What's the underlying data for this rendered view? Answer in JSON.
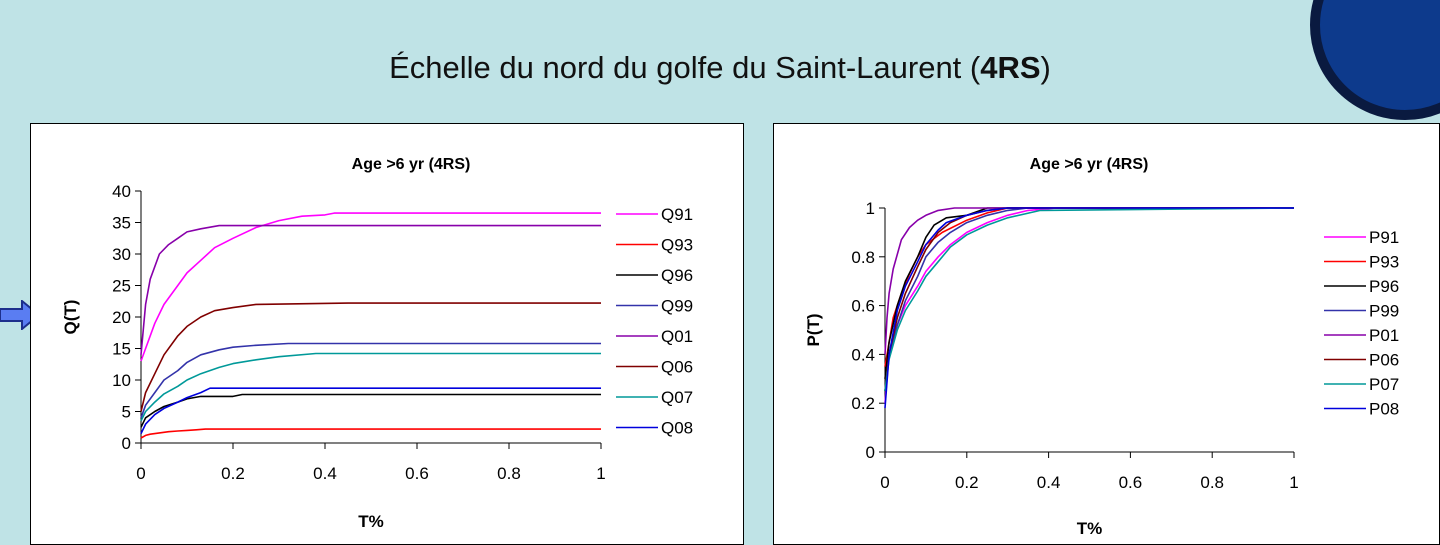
{
  "header": {
    "title_prefix": "Échelle du nord du golfe du Saint-Laurent (",
    "title_bold": "4RS",
    "title_suffix": ")"
  },
  "chart_data": [
    {
      "type": "line",
      "title": "Age >6 yr (4RS)",
      "xlabel": "T%",
      "ylabel": "Q(T)",
      "xlim": [
        0,
        1
      ],
      "ylim": [
        0,
        40
      ],
      "xticks": [
        "0",
        "0.2",
        "0.4",
        "0.6",
        "0.8",
        "1"
      ],
      "yticks": [
        "0",
        "5",
        "10",
        "15",
        "20",
        "25",
        "30",
        "35",
        "40"
      ],
      "legend_position": "right",
      "grid": false,
      "series": [
        {
          "name": "Q91",
          "color": "#ff00ff",
          "x": [
            0,
            0.01,
            0.03,
            0.05,
            0.08,
            0.1,
            0.13,
            0.16,
            0.2,
            0.25,
            0.3,
            0.35,
            0.4,
            0.42,
            0.45,
            1
          ],
          "y": [
            13,
            15,
            19,
            22,
            25,
            27,
            29,
            31,
            32.5,
            34.2,
            35.3,
            36,
            36.2,
            36.5,
            36.5,
            36.5
          ]
        },
        {
          "name": "Q93",
          "color": "#ff0000",
          "x": [
            0,
            0.01,
            0.02,
            0.04,
            0.06,
            0.08,
            0.1,
            0.12,
            0.14,
            1
          ],
          "y": [
            0.8,
            1.2,
            1.4,
            1.6,
            1.8,
            1.9,
            2.0,
            2.1,
            2.2,
            2.2
          ]
        },
        {
          "name": "Q96",
          "color": "#000000",
          "x": [
            0,
            0.01,
            0.03,
            0.05,
            0.08,
            0.1,
            0.13,
            0.15,
            0.2,
            0.22,
            1
          ],
          "y": [
            2.5,
            4,
            5,
            5.8,
            6.5,
            7,
            7.4,
            7.4,
            7.4,
            7.7,
            7.7
          ]
        },
        {
          "name": "Q99",
          "color": "#3333aa",
          "x": [
            0,
            0.01,
            0.03,
            0.05,
            0.08,
            0.1,
            0.13,
            0.17,
            0.2,
            0.25,
            0.32,
            1
          ],
          "y": [
            4,
            6,
            8,
            10,
            11.5,
            12.8,
            14,
            14.8,
            15.2,
            15.5,
            15.8,
            15.8
          ]
        },
        {
          "name": "Q01",
          "color": "#8800aa",
          "x": [
            0,
            0.005,
            0.01,
            0.02,
            0.04,
            0.06,
            0.08,
            0.1,
            0.13,
            0.17,
            0.2,
            1
          ],
          "y": [
            14,
            18,
            22,
            26,
            30,
            31.5,
            32.5,
            33.5,
            34,
            34.5,
            34.5,
            34.5
          ]
        },
        {
          "name": "Q06",
          "color": "#800000",
          "x": [
            0,
            0.01,
            0.03,
            0.05,
            0.08,
            0.1,
            0.13,
            0.16,
            0.2,
            0.25,
            0.45,
            1
          ],
          "y": [
            5,
            8,
            11,
            14,
            17,
            18.5,
            20,
            21,
            21.5,
            22,
            22.2,
            22.2
          ]
        },
        {
          "name": "Q07",
          "color": "#009999",
          "x": [
            0,
            0.01,
            0.03,
            0.05,
            0.08,
            0.1,
            0.13,
            0.17,
            0.2,
            0.25,
            0.3,
            0.38,
            1
          ],
          "y": [
            3.5,
            5,
            6.5,
            7.8,
            9,
            10,
            11,
            12,
            12.6,
            13.2,
            13.7,
            14.2,
            14.2
          ]
        },
        {
          "name": "Q08",
          "color": "#0000dd",
          "x": [
            0,
            0.01,
            0.03,
            0.05,
            0.08,
            0.1,
            0.13,
            0.15,
            1
          ],
          "y": [
            1.5,
            3,
            4.5,
            5.5,
            6.5,
            7.2,
            8,
            8.7,
            8.7
          ]
        }
      ]
    },
    {
      "type": "line",
      "title": "Age >6 yr (4RS)",
      "xlabel": "T%",
      "ylabel": "P(T)",
      "xlim": [
        0,
        1
      ],
      "ylim": [
        0,
        1
      ],
      "xticks": [
        "0",
        "0.2",
        "0.4",
        "0.6",
        "0.8",
        "1"
      ],
      "yticks": [
        "0",
        "0.2",
        "0.4",
        "0.6",
        "0.8",
        "1"
      ],
      "legend_position": "right",
      "grid": false,
      "series": [
        {
          "name": "P91",
          "color": "#ff00ff",
          "x": [
            0,
            0.01,
            0.03,
            0.05,
            0.08,
            0.1,
            0.13,
            0.16,
            0.2,
            0.25,
            0.3,
            0.35,
            0.42,
            1
          ],
          "y": [
            0.2,
            0.4,
            0.52,
            0.6,
            0.68,
            0.74,
            0.8,
            0.85,
            0.9,
            0.94,
            0.97,
            0.99,
            1,
            1
          ]
        },
        {
          "name": "P93",
          "color": "#ff0000",
          "x": [
            0,
            0.01,
            0.02,
            0.04,
            0.06,
            0.08,
            0.1,
            0.14,
            0.2,
            0.25,
            0.3,
            1
          ],
          "y": [
            0.35,
            0.45,
            0.55,
            0.65,
            0.73,
            0.8,
            0.85,
            0.9,
            0.95,
            0.98,
            1,
            1
          ]
        },
        {
          "name": "P96",
          "color": "#000000",
          "x": [
            0,
            0.01,
            0.03,
            0.05,
            0.08,
            0.1,
            0.12,
            0.15,
            0.2,
            0.25,
            1
          ],
          "y": [
            0.3,
            0.45,
            0.6,
            0.7,
            0.8,
            0.88,
            0.93,
            0.96,
            0.97,
            1,
            1
          ]
        },
        {
          "name": "P99",
          "color": "#3333aa",
          "x": [
            0,
            0.01,
            0.03,
            0.05,
            0.08,
            0.1,
            0.13,
            0.16,
            0.2,
            0.25,
            0.3,
            0.35,
            1
          ],
          "y": [
            0.25,
            0.4,
            0.52,
            0.62,
            0.72,
            0.8,
            0.86,
            0.9,
            0.94,
            0.97,
            0.99,
            1,
            1
          ]
        },
        {
          "name": "P01",
          "color": "#8800aa",
          "x": [
            0,
            0.005,
            0.01,
            0.02,
            0.04,
            0.06,
            0.08,
            0.1,
            0.13,
            0.17,
            1
          ],
          "y": [
            0.4,
            0.55,
            0.65,
            0.75,
            0.87,
            0.92,
            0.95,
            0.97,
            0.99,
            1,
            1
          ]
        },
        {
          "name": "P06",
          "color": "#800000",
          "x": [
            0,
            0.01,
            0.03,
            0.05,
            0.08,
            0.1,
            0.13,
            0.16,
            0.2,
            0.25,
            0.3,
            1
          ],
          "y": [
            0.25,
            0.4,
            0.55,
            0.65,
            0.76,
            0.83,
            0.9,
            0.94,
            0.97,
            0.99,
            1,
            1
          ]
        },
        {
          "name": "P07",
          "color": "#009999",
          "x": [
            0,
            0.01,
            0.03,
            0.05,
            0.08,
            0.1,
            0.13,
            0.16,
            0.2,
            0.25,
            0.3,
            0.38,
            1
          ],
          "y": [
            0.25,
            0.38,
            0.5,
            0.58,
            0.66,
            0.72,
            0.78,
            0.84,
            0.89,
            0.93,
            0.96,
            0.99,
            1
          ]
        },
        {
          "name": "P08",
          "color": "#0000dd",
          "x": [
            0,
            0.01,
            0.03,
            0.05,
            0.08,
            0.1,
            0.13,
            0.15,
            0.2,
            0.25,
            0.3,
            1
          ],
          "y": [
            0.18,
            0.4,
            0.58,
            0.68,
            0.78,
            0.85,
            0.91,
            0.94,
            0.97,
            0.99,
            1,
            1
          ]
        }
      ]
    }
  ]
}
